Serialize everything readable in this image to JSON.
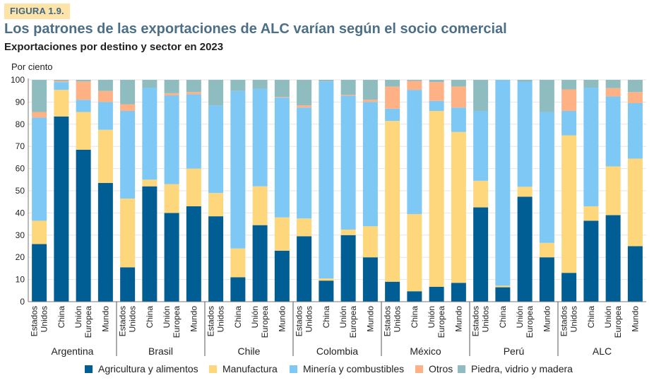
{
  "figure_tag": "FIGURA 1.9.",
  "title": "Los patrones de las exportaciones de ALC varían según el socio comercial",
  "subtitle": "Exportaciones por destino y sector en 2023",
  "chart_data": {
    "type": "bar",
    "stacked": true,
    "title": "Exportaciones por destino y sector en 2023",
    "ylabel": "Por ciento",
    "xlabel": "",
    "ylim": [
      0,
      100
    ],
    "yticks": [
      0,
      10,
      20,
      30,
      40,
      50,
      60,
      70,
      80,
      90,
      100
    ],
    "grid": true,
    "legend_position": "bottom",
    "groups": [
      "Argentina",
      "Brasil",
      "Chile",
      "Colombia",
      "México",
      "Perú",
      "ALC"
    ],
    "destinations": [
      [
        "Estados",
        "Unidos"
      ],
      [
        "China"
      ],
      [
        "Unión",
        "Europea"
      ],
      [
        "Mundo"
      ]
    ],
    "categories": [
      "Argentina - Estados Unidos",
      "Argentina - China",
      "Argentina - Unión Europea",
      "Argentina - Mundo",
      "Brasil - Estados Unidos",
      "Brasil - China",
      "Brasil - Unión Europea",
      "Brasil - Mundo",
      "Chile - Estados Unidos",
      "Chile - China",
      "Chile - Unión Europea",
      "Chile - Mundo",
      "Colombia - Estados Unidos",
      "Colombia - China",
      "Colombia - Unión Europea",
      "Colombia - Mundo",
      "México - Estados Unidos",
      "México - China",
      "México - Unión Europea",
      "México - Mundo",
      "Perú - Estados Unidos",
      "Perú - China",
      "Perú - Unión Europea",
      "Perú - Mundo",
      "ALC - Estados Unidos",
      "ALC - China",
      "ALC - Unión Europea",
      "ALC - Mundo"
    ],
    "series": [
      {
        "name": "Agricultura y alimentos",
        "color": "#005e94",
        "values": [
          26,
          83.5,
          68.5,
          53.5,
          15.5,
          52,
          40,
          43,
          38.5,
          11,
          34.5,
          23,
          29.5,
          9.5,
          30,
          20,
          9,
          4.7,
          6.7,
          8.5,
          42.5,
          6.5,
          47.3,
          20,
          13,
          36.5,
          39,
          25
        ]
      },
      {
        "name": "Manufactura",
        "color": "#fed67c",
        "values": [
          10.5,
          12,
          17,
          24,
          31,
          3,
          13,
          17,
          10.5,
          13,
          17.5,
          15,
          8,
          1,
          2.5,
          14,
          72.5,
          34.8,
          79.3,
          68,
          12,
          0.7,
          4.5,
          6.5,
          62,
          6.5,
          22,
          39.5
        ]
      },
      {
        "name": "Minería y combustibles",
        "color": "#7ec8f5",
        "values": [
          46.5,
          3.5,
          5.5,
          12.5,
          39.5,
          41.5,
          40,
          33.5,
          39.5,
          71,
          44,
          54,
          50,
          88.8,
          60.3,
          56,
          5.5,
          56,
          4.5,
          11,
          31.5,
          92.8,
          47.4,
          59,
          11,
          53.5,
          31.5,
          25
        ]
      },
      {
        "name": "Otros",
        "color": "#fdb185",
        "values": [
          2.5,
          0.5,
          8.3,
          5,
          3,
          0,
          1,
          1,
          0,
          0,
          0,
          0.3,
          1,
          0,
          0.4,
          1,
          10,
          4,
          8.5,
          9.5,
          0,
          0,
          0,
          0,
          9.7,
          0,
          3.8,
          5
        ]
      },
      {
        "name": "Piedra, vidrio y madera",
        "color": "#8fbcbe",
        "values": [
          14.5,
          0.5,
          0.7,
          5,
          11,
          3.5,
          6,
          5.5,
          11.5,
          5,
          4,
          7.7,
          11.5,
          0.7,
          6.8,
          9,
          3,
          0.5,
          1,
          3,
          14,
          0,
          0.8,
          14.5,
          4.3,
          3.5,
          3.7,
          5.5
        ]
      }
    ]
  }
}
